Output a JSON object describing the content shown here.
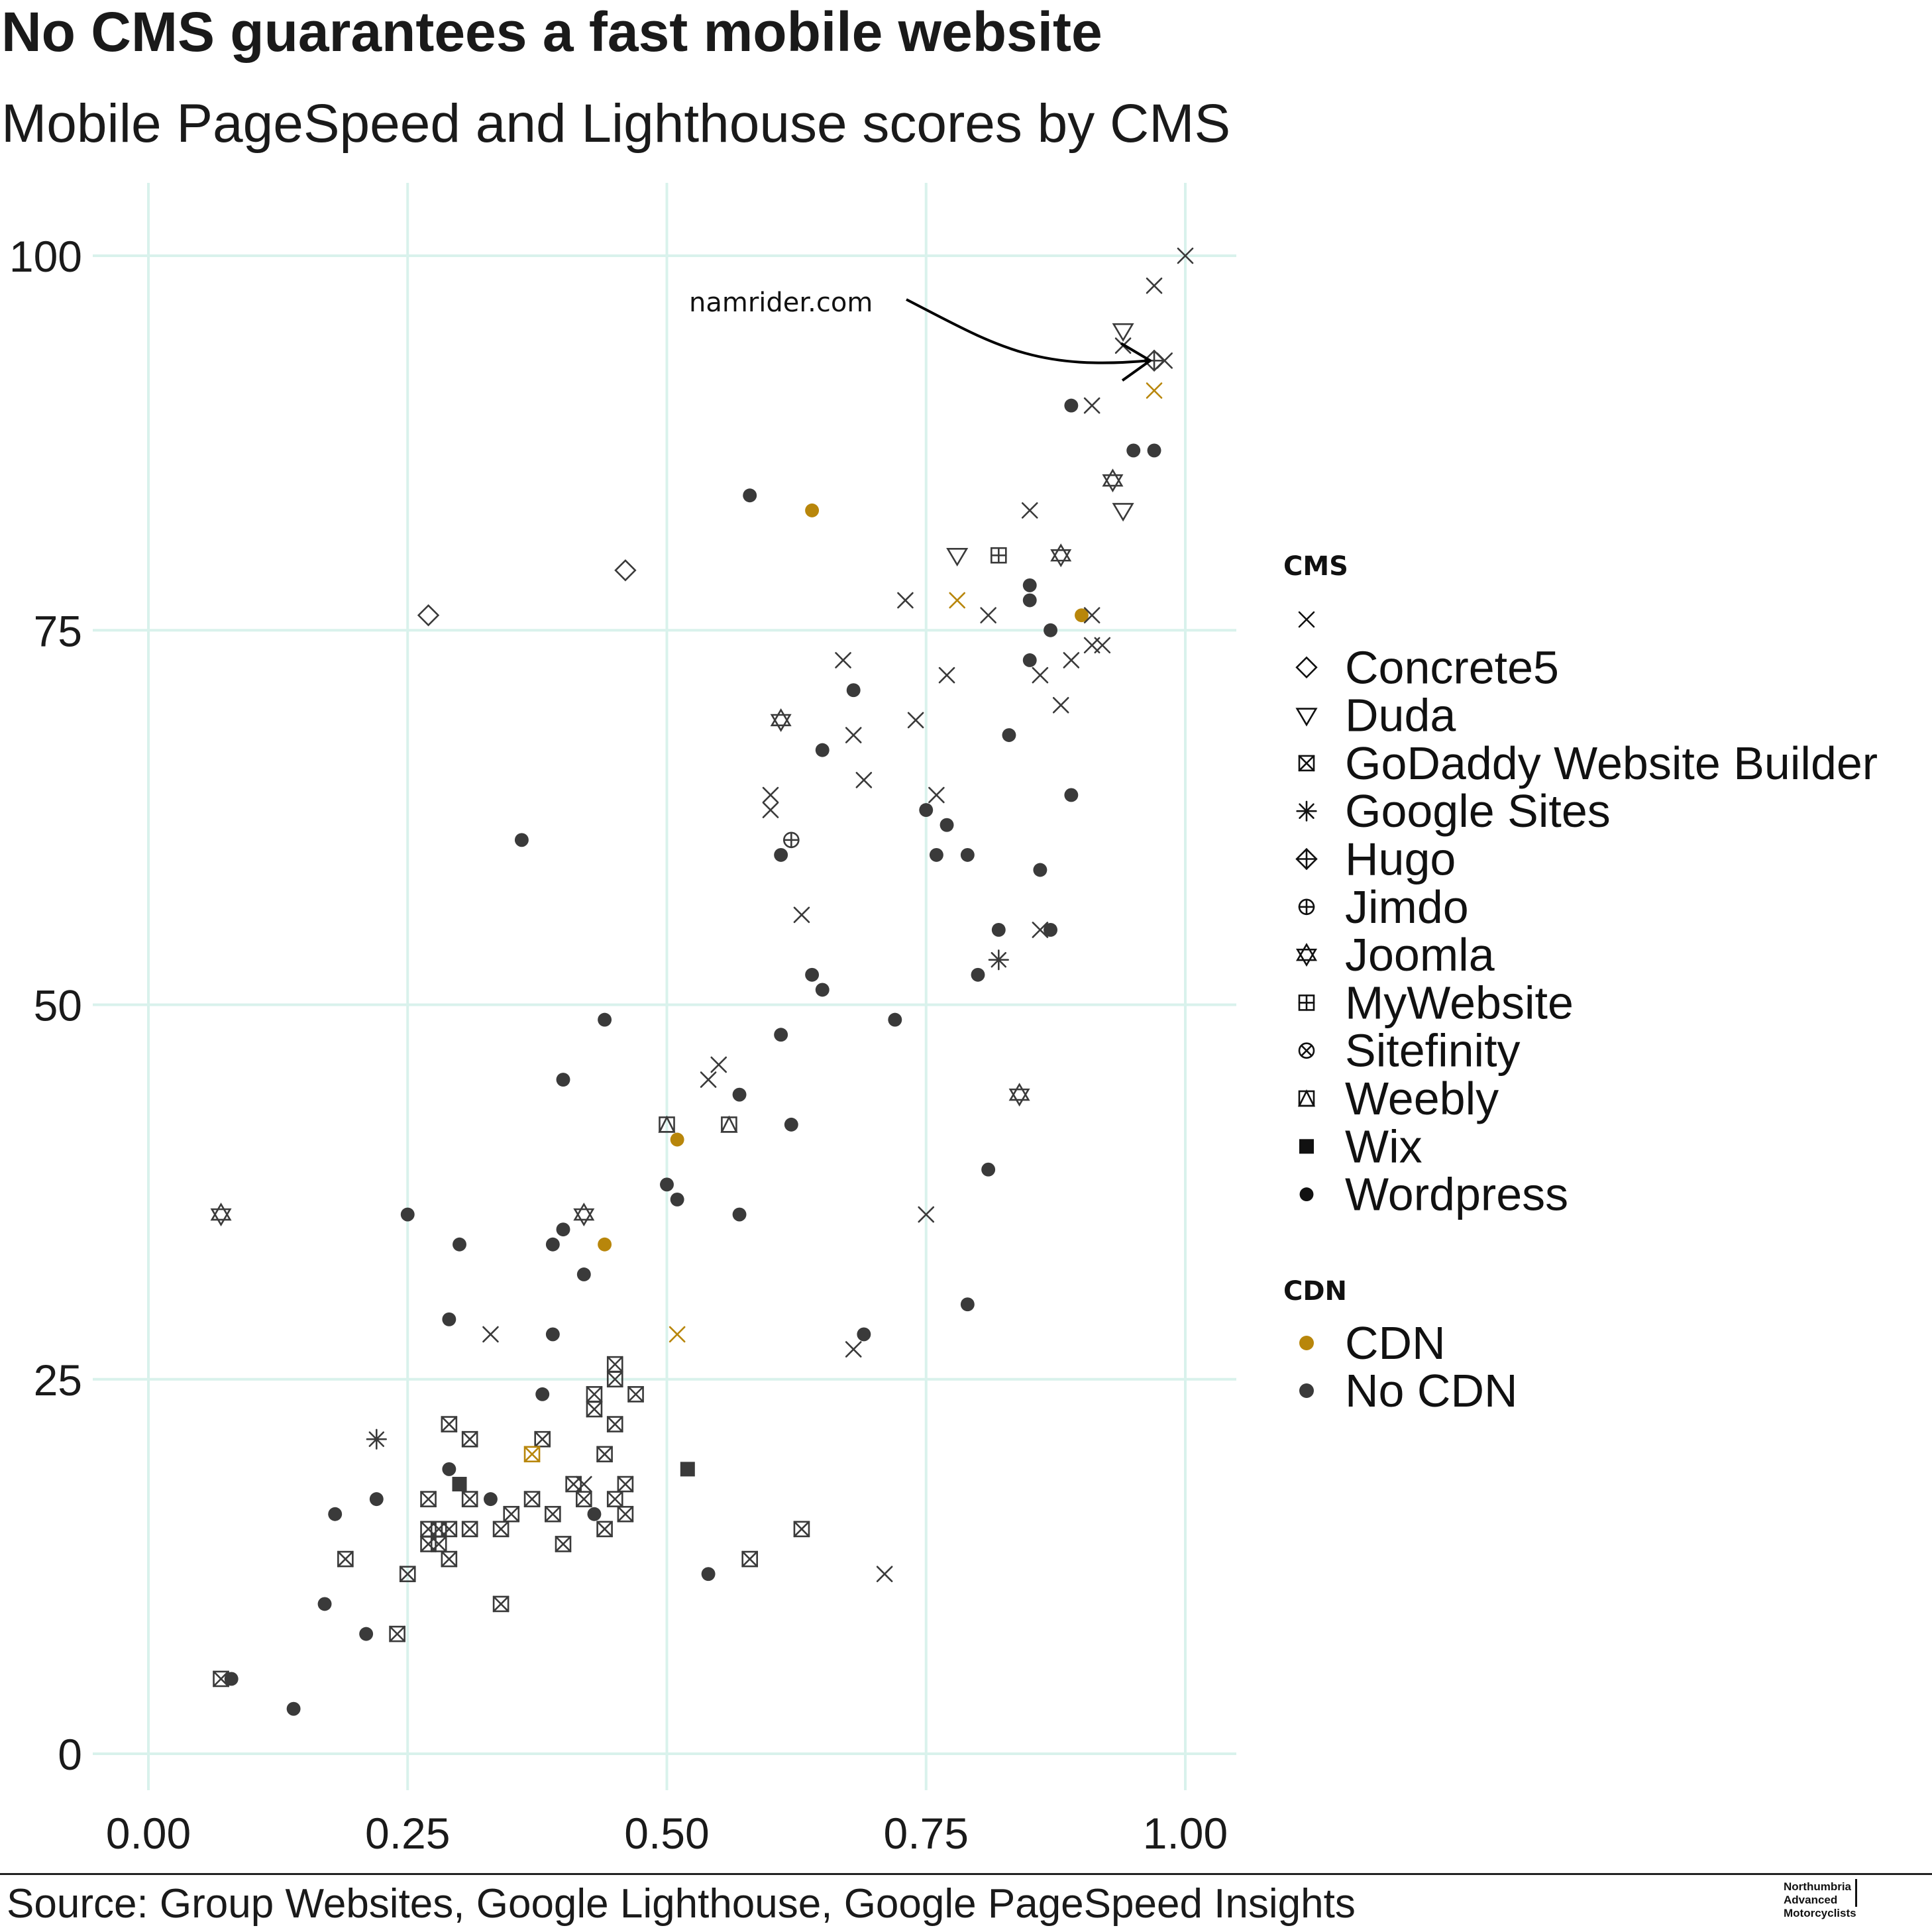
{
  "title": "No CMS guarantees a fast mobile website",
  "subtitle": "Mobile PageSpeed and Lighthouse scores by CMS",
  "source": "Source: Group Websites, Google Lighthouse, Google PageSpeed Insights",
  "logo": {
    "line1": "Northumbria",
    "line2": "Advanced",
    "line3": "Motorcyclists"
  },
  "colors": {
    "cdn": "#b8860b",
    "no_cdn": "#3a3a3a",
    "grid": "#d9f2ec"
  },
  "chart_data": {
    "type": "scatter",
    "title": "No CMS guarantees a fast mobile website",
    "subtitle": "Mobile PageSpeed and Lighthouse scores by CMS",
    "xlabel": "",
    "ylabel": "",
    "xlim": [
      -0.05,
      1.05
    ],
    "ylim": [
      -2,
      105
    ],
    "x_ticks": [
      "0.00",
      "0.25",
      "0.50",
      "0.75",
      "1.00"
    ],
    "y_ticks": [
      "0",
      "25",
      "50",
      "75",
      "100"
    ],
    "grid": true,
    "legend_position": "right",
    "annotation": {
      "text": "namrider.com",
      "points_to": [
        0.97,
        93
      ]
    },
    "legend_cms_title": "CMS",
    "legend_cms": [
      {
        "label": "",
        "shape": "x"
      },
      {
        "label": "Concrete5",
        "shape": "diamond"
      },
      {
        "label": "Duda",
        "shape": "triangle-down"
      },
      {
        "label": "GoDaddy Website Builder",
        "shape": "square-x"
      },
      {
        "label": "Google Sites",
        "shape": "asterisk"
      },
      {
        "label": "Hugo",
        "shape": "diamond-plus"
      },
      {
        "label": "Jimdo",
        "shape": "circle-plus"
      },
      {
        "label": "Joomla",
        "shape": "star-david"
      },
      {
        "label": "MyWebsite",
        "shape": "square-plus"
      },
      {
        "label": "Sitefinity",
        "shape": "circle-x"
      },
      {
        "label": "Weebly",
        "shape": "square-triangle"
      },
      {
        "label": "Wix",
        "shape": "square-filled"
      },
      {
        "label": "Wordpress",
        "shape": "dot"
      }
    ],
    "legend_cdn_title": "CDN",
    "legend_cdn": [
      {
        "label": "CDN",
        "color": "#b8860b"
      },
      {
        "label": "No CDN",
        "color": "#3a3a3a"
      }
    ],
    "points": [
      {
        "x": 1.0,
        "y": 100,
        "shape": "x",
        "cdn": false
      },
      {
        "x": 0.97,
        "y": 98,
        "shape": "x",
        "cdn": false
      },
      {
        "x": 0.94,
        "y": 95,
        "shape": "triangle-down",
        "cdn": false
      },
      {
        "x": 0.94,
        "y": 94,
        "shape": "x",
        "cdn": false
      },
      {
        "x": 0.97,
        "y": 93,
        "shape": "diamond-plus",
        "cdn": false
      },
      {
        "x": 0.98,
        "y": 93,
        "shape": "x",
        "cdn": false
      },
      {
        "x": 0.97,
        "y": 91,
        "shape": "x",
        "cdn": true
      },
      {
        "x": 0.89,
        "y": 90,
        "shape": "dot",
        "cdn": false
      },
      {
        "x": 0.91,
        "y": 90,
        "shape": "x",
        "cdn": false
      },
      {
        "x": 0.95,
        "y": 87,
        "shape": "dot",
        "cdn": false
      },
      {
        "x": 0.97,
        "y": 87,
        "shape": "dot",
        "cdn": false
      },
      {
        "x": 0.93,
        "y": 85,
        "shape": "star-david",
        "cdn": false
      },
      {
        "x": 0.58,
        "y": 84,
        "shape": "dot",
        "cdn": false
      },
      {
        "x": 0.64,
        "y": 83,
        "shape": "dot",
        "cdn": true
      },
      {
        "x": 0.85,
        "y": 83,
        "shape": "x",
        "cdn": false
      },
      {
        "x": 0.94,
        "y": 83,
        "shape": "triangle-down",
        "cdn": false
      },
      {
        "x": 0.78,
        "y": 80,
        "shape": "triangle-down",
        "cdn": false
      },
      {
        "x": 0.82,
        "y": 80,
        "shape": "square-plus",
        "cdn": false
      },
      {
        "x": 0.88,
        "y": 80,
        "shape": "star-david",
        "cdn": false
      },
      {
        "x": 0.46,
        "y": 79,
        "shape": "diamond",
        "cdn": false
      },
      {
        "x": 0.85,
        "y": 78,
        "shape": "dot",
        "cdn": false
      },
      {
        "x": 0.73,
        "y": 77,
        "shape": "x",
        "cdn": false
      },
      {
        "x": 0.78,
        "y": 77,
        "shape": "x",
        "cdn": true
      },
      {
        "x": 0.85,
        "y": 77,
        "shape": "dot",
        "cdn": false
      },
      {
        "x": 0.27,
        "y": 76,
        "shape": "diamond",
        "cdn": false
      },
      {
        "x": 0.81,
        "y": 76,
        "shape": "x",
        "cdn": false
      },
      {
        "x": 0.9,
        "y": 76,
        "shape": "dot",
        "cdn": true
      },
      {
        "x": 0.91,
        "y": 76,
        "shape": "x",
        "cdn": false
      },
      {
        "x": 0.87,
        "y": 75,
        "shape": "dot",
        "cdn": false
      },
      {
        "x": 0.91,
        "y": 74,
        "shape": "x",
        "cdn": false
      },
      {
        "x": 0.92,
        "y": 74,
        "shape": "x",
        "cdn": false
      },
      {
        "x": 0.67,
        "y": 73,
        "shape": "x",
        "cdn": false
      },
      {
        "x": 0.85,
        "y": 73,
        "shape": "dot",
        "cdn": false
      },
      {
        "x": 0.89,
        "y": 73,
        "shape": "x",
        "cdn": false
      },
      {
        "x": 0.77,
        "y": 72,
        "shape": "x",
        "cdn": false
      },
      {
        "x": 0.86,
        "y": 72,
        "shape": "x",
        "cdn": false
      },
      {
        "x": 0.68,
        "y": 71,
        "shape": "dot",
        "cdn": false
      },
      {
        "x": 0.88,
        "y": 70,
        "shape": "x",
        "cdn": false
      },
      {
        "x": 0.61,
        "y": 69,
        "shape": "star-david",
        "cdn": false
      },
      {
        "x": 0.74,
        "y": 69,
        "shape": "x",
        "cdn": false
      },
      {
        "x": 0.68,
        "y": 68,
        "shape": "x",
        "cdn": false
      },
      {
        "x": 0.83,
        "y": 68,
        "shape": "dot",
        "cdn": false
      },
      {
        "x": 0.65,
        "y": 67,
        "shape": "dot",
        "cdn": false
      },
      {
        "x": 0.69,
        "y": 65,
        "shape": "x",
        "cdn": false
      },
      {
        "x": 0.6,
        "y": 64,
        "shape": "x",
        "cdn": false
      },
      {
        "x": 0.76,
        "y": 64,
        "shape": "x",
        "cdn": false
      },
      {
        "x": 0.89,
        "y": 64,
        "shape": "dot",
        "cdn": false
      },
      {
        "x": 0.6,
        "y": 63,
        "shape": "x",
        "cdn": false
      },
      {
        "x": 0.75,
        "y": 63,
        "shape": "dot",
        "cdn": false
      },
      {
        "x": 0.77,
        "y": 62,
        "shape": "dot",
        "cdn": false
      },
      {
        "x": 0.36,
        "y": 61,
        "shape": "dot",
        "cdn": false
      },
      {
        "x": 0.62,
        "y": 61,
        "shape": "circle-plus",
        "cdn": false
      },
      {
        "x": 0.61,
        "y": 60,
        "shape": "dot",
        "cdn": false
      },
      {
        "x": 0.76,
        "y": 60,
        "shape": "dot",
        "cdn": false
      },
      {
        "x": 0.79,
        "y": 60,
        "shape": "dot",
        "cdn": false
      },
      {
        "x": 0.86,
        "y": 59,
        "shape": "dot",
        "cdn": false
      },
      {
        "x": 0.63,
        "y": 56,
        "shape": "x",
        "cdn": false
      },
      {
        "x": 0.82,
        "y": 55,
        "shape": "dot",
        "cdn": false
      },
      {
        "x": 0.86,
        "y": 55,
        "shape": "x",
        "cdn": false
      },
      {
        "x": 0.87,
        "y": 55,
        "shape": "dot",
        "cdn": false
      },
      {
        "x": 0.82,
        "y": 53,
        "shape": "asterisk",
        "cdn": false
      },
      {
        "x": 0.64,
        "y": 52,
        "shape": "dot",
        "cdn": false
      },
      {
        "x": 0.8,
        "y": 52,
        "shape": "dot",
        "cdn": false
      },
      {
        "x": 0.65,
        "y": 51,
        "shape": "dot",
        "cdn": false
      },
      {
        "x": 0.44,
        "y": 49,
        "shape": "dot",
        "cdn": false
      },
      {
        "x": 0.72,
        "y": 49,
        "shape": "dot",
        "cdn": false
      },
      {
        "x": 0.61,
        "y": 48,
        "shape": "dot",
        "cdn": false
      },
      {
        "x": 0.55,
        "y": 46,
        "shape": "x",
        "cdn": false
      },
      {
        "x": 0.4,
        "y": 45,
        "shape": "dot",
        "cdn": false
      },
      {
        "x": 0.54,
        "y": 45,
        "shape": "x",
        "cdn": false
      },
      {
        "x": 0.57,
        "y": 44,
        "shape": "dot",
        "cdn": false
      },
      {
        "x": 0.84,
        "y": 44,
        "shape": "star-david",
        "cdn": false
      },
      {
        "x": 0.5,
        "y": 42,
        "shape": "square-triangle",
        "cdn": false
      },
      {
        "x": 0.56,
        "y": 42,
        "shape": "square-triangle",
        "cdn": false
      },
      {
        "x": 0.62,
        "y": 42,
        "shape": "dot",
        "cdn": false
      },
      {
        "x": 0.51,
        "y": 41,
        "shape": "dot",
        "cdn": true
      },
      {
        "x": 0.81,
        "y": 39,
        "shape": "dot",
        "cdn": false
      },
      {
        "x": 0.5,
        "y": 38,
        "shape": "dot",
        "cdn": false
      },
      {
        "x": 0.51,
        "y": 37,
        "shape": "dot",
        "cdn": false
      },
      {
        "x": 0.07,
        "y": 36,
        "shape": "star-david",
        "cdn": false
      },
      {
        "x": 0.25,
        "y": 36,
        "shape": "dot",
        "cdn": false
      },
      {
        "x": 0.42,
        "y": 36,
        "shape": "star-david",
        "cdn": false
      },
      {
        "x": 0.57,
        "y": 36,
        "shape": "dot",
        "cdn": false
      },
      {
        "x": 0.75,
        "y": 36,
        "shape": "x",
        "cdn": false
      },
      {
        "x": 0.4,
        "y": 35,
        "shape": "dot",
        "cdn": false
      },
      {
        "x": 0.3,
        "y": 34,
        "shape": "dot",
        "cdn": false
      },
      {
        "x": 0.39,
        "y": 34,
        "shape": "dot",
        "cdn": false
      },
      {
        "x": 0.44,
        "y": 34,
        "shape": "dot",
        "cdn": true
      },
      {
        "x": 0.42,
        "y": 32,
        "shape": "dot",
        "cdn": false
      },
      {
        "x": 0.79,
        "y": 30,
        "shape": "dot",
        "cdn": false
      },
      {
        "x": 0.29,
        "y": 29,
        "shape": "dot",
        "cdn": false
      },
      {
        "x": 0.33,
        "y": 28,
        "shape": "x",
        "cdn": false
      },
      {
        "x": 0.39,
        "y": 28,
        "shape": "dot",
        "cdn": false
      },
      {
        "x": 0.51,
        "y": 28,
        "shape": "x",
        "cdn": true
      },
      {
        "x": 0.69,
        "y": 28,
        "shape": "dot",
        "cdn": false
      },
      {
        "x": 0.68,
        "y": 27,
        "shape": "x",
        "cdn": false
      },
      {
        "x": 0.45,
        "y": 26,
        "shape": "square-x",
        "cdn": false
      },
      {
        "x": 0.45,
        "y": 25,
        "shape": "square-x",
        "cdn": false
      },
      {
        "x": 0.38,
        "y": 24,
        "shape": "dot",
        "cdn": false
      },
      {
        "x": 0.43,
        "y": 24,
        "shape": "square-x",
        "cdn": false
      },
      {
        "x": 0.47,
        "y": 24,
        "shape": "square-x",
        "cdn": false
      },
      {
        "x": 0.43,
        "y": 23,
        "shape": "square-x",
        "cdn": false
      },
      {
        "x": 0.29,
        "y": 22,
        "shape": "square-x",
        "cdn": false
      },
      {
        "x": 0.45,
        "y": 22,
        "shape": "square-x",
        "cdn": false
      },
      {
        "x": 0.22,
        "y": 21,
        "shape": "asterisk",
        "cdn": false
      },
      {
        "x": 0.31,
        "y": 21,
        "shape": "square-x",
        "cdn": false
      },
      {
        "x": 0.38,
        "y": 21,
        "shape": "square-x",
        "cdn": false
      },
      {
        "x": 0.37,
        "y": 20,
        "shape": "square-x",
        "cdn": true
      },
      {
        "x": 0.44,
        "y": 20,
        "shape": "square-x",
        "cdn": false
      },
      {
        "x": 0.29,
        "y": 19,
        "shape": "dot",
        "cdn": false
      },
      {
        "x": 0.52,
        "y": 19,
        "shape": "square-filled",
        "cdn": false
      },
      {
        "x": 0.3,
        "y": 18,
        "shape": "square-filled",
        "cdn": false
      },
      {
        "x": 0.41,
        "y": 18,
        "shape": "square-x",
        "cdn": false
      },
      {
        "x": 0.42,
        "y": 18,
        "shape": "x",
        "cdn": false
      },
      {
        "x": 0.46,
        "y": 18,
        "shape": "square-x",
        "cdn": false
      },
      {
        "x": 0.22,
        "y": 17,
        "shape": "dot",
        "cdn": false
      },
      {
        "x": 0.27,
        "y": 17,
        "shape": "square-x",
        "cdn": false
      },
      {
        "x": 0.31,
        "y": 17,
        "shape": "square-x",
        "cdn": false
      },
      {
        "x": 0.33,
        "y": 17,
        "shape": "dot",
        "cdn": false
      },
      {
        "x": 0.37,
        "y": 17,
        "shape": "square-x",
        "cdn": false
      },
      {
        "x": 0.42,
        "y": 17,
        "shape": "square-x",
        "cdn": false
      },
      {
        "x": 0.45,
        "y": 17,
        "shape": "square-x",
        "cdn": false
      },
      {
        "x": 0.18,
        "y": 16,
        "shape": "dot",
        "cdn": false
      },
      {
        "x": 0.35,
        "y": 16,
        "shape": "square-x",
        "cdn": false
      },
      {
        "x": 0.39,
        "y": 16,
        "shape": "square-x",
        "cdn": false
      },
      {
        "x": 0.43,
        "y": 16,
        "shape": "dot",
        "cdn": false
      },
      {
        "x": 0.46,
        "y": 16,
        "shape": "square-x",
        "cdn": false
      },
      {
        "x": 0.27,
        "y": 15,
        "shape": "square-x",
        "cdn": false
      },
      {
        "x": 0.28,
        "y": 15,
        "shape": "square-x",
        "cdn": false
      },
      {
        "x": 0.29,
        "y": 15,
        "shape": "square-x",
        "cdn": false
      },
      {
        "x": 0.31,
        "y": 15,
        "shape": "square-x",
        "cdn": false
      },
      {
        "x": 0.34,
        "y": 15,
        "shape": "square-x",
        "cdn": false
      },
      {
        "x": 0.44,
        "y": 15,
        "shape": "square-x",
        "cdn": false
      },
      {
        "x": 0.63,
        "y": 15,
        "shape": "square-x",
        "cdn": false
      },
      {
        "x": 0.27,
        "y": 14,
        "shape": "square-x",
        "cdn": false
      },
      {
        "x": 0.28,
        "y": 14,
        "shape": "square-x",
        "cdn": false
      },
      {
        "x": 0.4,
        "y": 14,
        "shape": "square-x",
        "cdn": false
      },
      {
        "x": 0.19,
        "y": 13,
        "shape": "square-x",
        "cdn": false
      },
      {
        "x": 0.29,
        "y": 13,
        "shape": "square-x",
        "cdn": false
      },
      {
        "x": 0.58,
        "y": 13,
        "shape": "square-x",
        "cdn": false
      },
      {
        "x": 0.25,
        "y": 12,
        "shape": "square-x",
        "cdn": false
      },
      {
        "x": 0.54,
        "y": 12,
        "shape": "dot",
        "cdn": false
      },
      {
        "x": 0.71,
        "y": 12,
        "shape": "x",
        "cdn": false
      },
      {
        "x": 0.17,
        "y": 10,
        "shape": "dot",
        "cdn": false
      },
      {
        "x": 0.34,
        "y": 10,
        "shape": "square-x",
        "cdn": false
      },
      {
        "x": 0.21,
        "y": 8,
        "shape": "dot",
        "cdn": false
      },
      {
        "x": 0.24,
        "y": 8,
        "shape": "square-x",
        "cdn": false
      },
      {
        "x": 0.07,
        "y": 5,
        "shape": "square-x",
        "cdn": false
      },
      {
        "x": 0.08,
        "y": 5,
        "shape": "dot",
        "cdn": false
      },
      {
        "x": 0.14,
        "y": 3,
        "shape": "dot",
        "cdn": false
      }
    ]
  }
}
